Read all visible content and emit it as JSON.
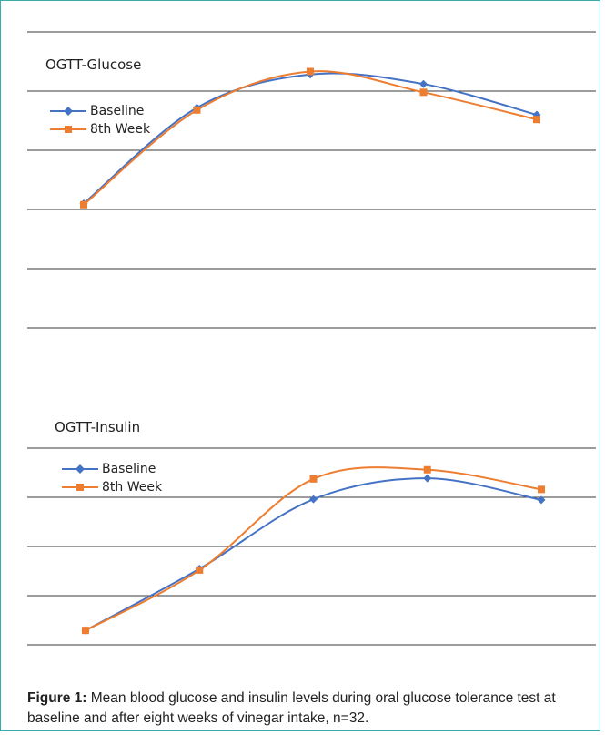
{
  "colors": {
    "baseline": "#4472c4",
    "week8": "#ed7d31",
    "grid": "#3a3a3a",
    "border": "#3aaba8"
  },
  "chart_data": [
    {
      "type": "line",
      "title": "OGTT-Glucose",
      "x": [
        0,
        30,
        60,
        90,
        120
      ],
      "series": [
        {
          "name": "Baseline",
          "marker": "diamond",
          "values": [
            1.1,
            2.72,
            3.28,
            3.12,
            2.6
          ]
        },
        {
          "name": "8th Week",
          "marker": "square",
          "values": [
            1.08,
            2.68,
            3.33,
            2.98,
            2.52
          ]
        }
      ],
      "ylim": [
        -1,
        4
      ],
      "grid": true,
      "legend": "top-left"
    },
    {
      "type": "line",
      "title": "OGTT-Insulin",
      "x": [
        0,
        30,
        60,
        90,
        120
      ],
      "series": [
        {
          "name": "Baseline",
          "marker": "diamond",
          "values": [
            0.72,
            1.66,
            2.72,
            3.04,
            2.71
          ]
        },
        {
          "name": "8th Week",
          "marker": "square",
          "values": [
            0.72,
            1.64,
            3.03,
            3.17,
            2.87
          ]
        }
      ],
      "ylim": [
        0.5,
        3.5
      ],
      "grid": true,
      "legend": "top-left"
    }
  ],
  "caption": {
    "label": "Figure 1:",
    "text": " Mean blood glucose and insulin levels during oral glucose tolerance test at baseline and after eight weeks of vinegar intake, n=32."
  }
}
